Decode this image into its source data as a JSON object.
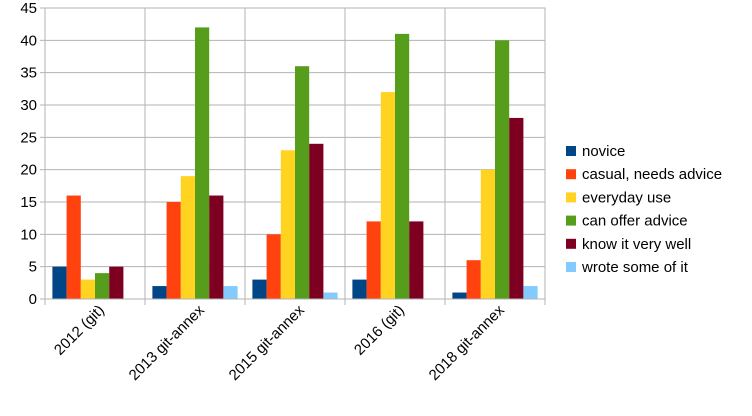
{
  "chart_data": {
    "type": "bar",
    "categories": [
      "2012 (git)",
      "2013 git-annex",
      "2015 git-annex",
      "2016 (git)",
      "2018 git-annex"
    ],
    "series": [
      {
        "name": "novice",
        "values": [
          5,
          2,
          3,
          3,
          1
        ],
        "color": "#004586"
      },
      {
        "name": "casual, needs advice",
        "values": [
          16,
          15,
          10,
          12,
          6
        ],
        "color": "#ff420e"
      },
      {
        "name": "everyday use",
        "values": [
          3,
          19,
          23,
          32,
          20
        ],
        "color": "#ffd320"
      },
      {
        "name": "can offer advice",
        "values": [
          4,
          42,
          36,
          41,
          40
        ],
        "color": "#579d1c"
      },
      {
        "name": "know it very well",
        "values": [
          5,
          16,
          24,
          12,
          28
        ],
        "color": "#7e0021"
      },
      {
        "name": "wrote some of it",
        "values": [
          0,
          2,
          1,
          0,
          2
        ],
        "color": "#83caff"
      }
    ],
    "yticks": [
      "0",
      "5",
      "10",
      "15",
      "20",
      "25",
      "30",
      "35",
      "40",
      "45"
    ],
    "ylim": [
      0,
      45
    ],
    "grid": true,
    "legend_position": "right",
    "xtick_rotation": "-45deg"
  }
}
